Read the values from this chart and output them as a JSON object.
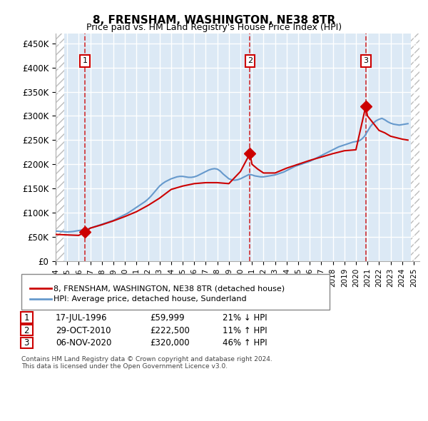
{
  "title": "8, FRENSHAM, WASHINGTON, NE38 8TR",
  "subtitle": "Price paid vs. HM Land Registry's House Price Index (HPI)",
  "ylabel_ticks": [
    "£0",
    "£50K",
    "£100K",
    "£150K",
    "£200K",
    "£250K",
    "£300K",
    "£350K",
    "£400K",
    "£450K"
  ],
  "ytick_values": [
    0,
    50000,
    100000,
    150000,
    200000,
    250000,
    300000,
    350000,
    400000,
    450000
  ],
  "ylim": [
    0,
    470000
  ],
  "xlim_start": 1994.0,
  "xlim_end": 2025.5,
  "sale_dates": [
    1996.54,
    2010.83,
    2020.85
  ],
  "sale_prices": [
    59999,
    222500,
    320000
  ],
  "sale_labels": [
    "1",
    "2",
    "3"
  ],
  "hpi_color": "#6699cc",
  "price_color": "#cc0000",
  "bg_color": "#dce9f5",
  "hatch_color": "#bbbbbb",
  "grid_color": "#ffffff",
  "legend_label_price": "8, FRENSHAM, WASHINGTON, NE38 8TR (detached house)",
  "legend_label_hpi": "HPI: Average price, detached house, Sunderland",
  "table_rows": [
    [
      "1",
      "17-JUL-1996",
      "£59,999",
      "21% ↓ HPI"
    ],
    [
      "2",
      "29-OCT-2010",
      "£222,500",
      "11% ↑ HPI"
    ],
    [
      "3",
      "06-NOV-2020",
      "£320,000",
      "46% ↑ HPI"
    ]
  ],
  "footnote": "Contains HM Land Registry data © Crown copyright and database right 2024.\nThis data is licensed under the Open Government Licence v3.0.",
  "hpi_data": {
    "years": [
      1994.0,
      1994.25,
      1994.5,
      1994.75,
      1995.0,
      1995.25,
      1995.5,
      1995.75,
      1996.0,
      1996.25,
      1996.5,
      1996.75,
      1997.0,
      1997.25,
      1997.5,
      1997.75,
      1998.0,
      1998.25,
      1998.5,
      1998.75,
      1999.0,
      1999.25,
      1999.5,
      1999.75,
      2000.0,
      2000.25,
      2000.5,
      2000.75,
      2001.0,
      2001.25,
      2001.5,
      2001.75,
      2002.0,
      2002.25,
      2002.5,
      2002.75,
      2003.0,
      2003.25,
      2003.5,
      2003.75,
      2004.0,
      2004.25,
      2004.5,
      2004.75,
      2005.0,
      2005.25,
      2005.5,
      2005.75,
      2006.0,
      2006.25,
      2006.5,
      2006.75,
      2007.0,
      2007.25,
      2007.5,
      2007.75,
      2008.0,
      2008.25,
      2008.5,
      2008.75,
      2009.0,
      2009.25,
      2009.5,
      2009.75,
      2010.0,
      2010.25,
      2010.5,
      2010.75,
      2011.0,
      2011.25,
      2011.5,
      2011.75,
      2012.0,
      2012.25,
      2012.5,
      2012.75,
      2013.0,
      2013.25,
      2013.5,
      2013.75,
      2014.0,
      2014.25,
      2014.5,
      2014.75,
      2015.0,
      2015.25,
      2015.5,
      2015.75,
      2016.0,
      2016.25,
      2016.5,
      2016.75,
      2017.0,
      2017.25,
      2017.5,
      2017.75,
      2018.0,
      2018.25,
      2018.5,
      2018.75,
      2019.0,
      2019.25,
      2019.5,
      2019.75,
      2020.0,
      2020.25,
      2020.5,
      2020.75,
      2021.0,
      2021.25,
      2021.5,
      2021.75,
      2022.0,
      2022.25,
      2022.5,
      2022.75,
      2023.0,
      2023.25,
      2023.5,
      2023.75,
      2024.0,
      2024.25,
      2024.5
    ],
    "values": [
      62000,
      61500,
      61000,
      60500,
      60000,
      60500,
      61000,
      62000,
      63000,
      64000,
      65000,
      66000,
      68000,
      70000,
      72000,
      74000,
      76000,
      78000,
      80000,
      82000,
      84000,
      87000,
      90000,
      93000,
      96000,
      99000,
      103000,
      107000,
      111000,
      115000,
      119000,
      123000,
      128000,
      134000,
      141000,
      148000,
      155000,
      160000,
      164000,
      167000,
      170000,
      172000,
      174000,
      175000,
      175000,
      174000,
      173000,
      173000,
      174000,
      176000,
      179000,
      182000,
      185000,
      188000,
      190000,
      191000,
      190000,
      186000,
      180000,
      175000,
      170000,
      168000,
      167000,
      168000,
      170000,
      173000,
      176000,
      179000,
      178000,
      176000,
      175000,
      174000,
      174000,
      175000,
      176000,
      177000,
      178000,
      180000,
      182000,
      184000,
      187000,
      190000,
      193000,
      196000,
      198000,
      200000,
      202000,
      204000,
      206000,
      209000,
      212000,
      215000,
      218000,
      221000,
      224000,
      227000,
      230000,
      233000,
      236000,
      238000,
      240000,
      242000,
      244000,
      246000,
      247000,
      248000,
      252000,
      258000,
      268000,
      278000,
      285000,
      290000,
      293000,
      295000,
      292000,
      288000,
      285000,
      283000,
      282000,
      281000,
      282000,
      283000,
      284000
    ]
  },
  "price_line_data": {
    "years": [
      1994.0,
      1995.0,
      1996.0,
      1996.54,
      1997.0,
      1998.0,
      1999.0,
      2000.0,
      2001.0,
      2002.0,
      2003.0,
      2004.0,
      2005.0,
      2006.0,
      2007.0,
      2008.0,
      2009.0,
      2010.0,
      2010.83,
      2011.0,
      2011.5,
      2012.0,
      2013.0,
      2014.0,
      2015.0,
      2016.0,
      2017.0,
      2018.0,
      2019.0,
      2020.0,
      2020.85,
      2021.0,
      2021.5,
      2022.0,
      2022.5,
      2023.0,
      2023.5,
      2024.0,
      2024.5
    ],
    "values": [
      55000,
      54000,
      53000,
      59999,
      68000,
      75000,
      83000,
      92000,
      102000,
      115000,
      130000,
      148000,
      155000,
      160000,
      162000,
      162000,
      160000,
      185000,
      222500,
      200000,
      190000,
      182000,
      182000,
      192000,
      200000,
      208000,
      215000,
      222000,
      228000,
      230000,
      320000,
      300000,
      285000,
      270000,
      265000,
      258000,
      255000,
      252000,
      250000
    ]
  }
}
